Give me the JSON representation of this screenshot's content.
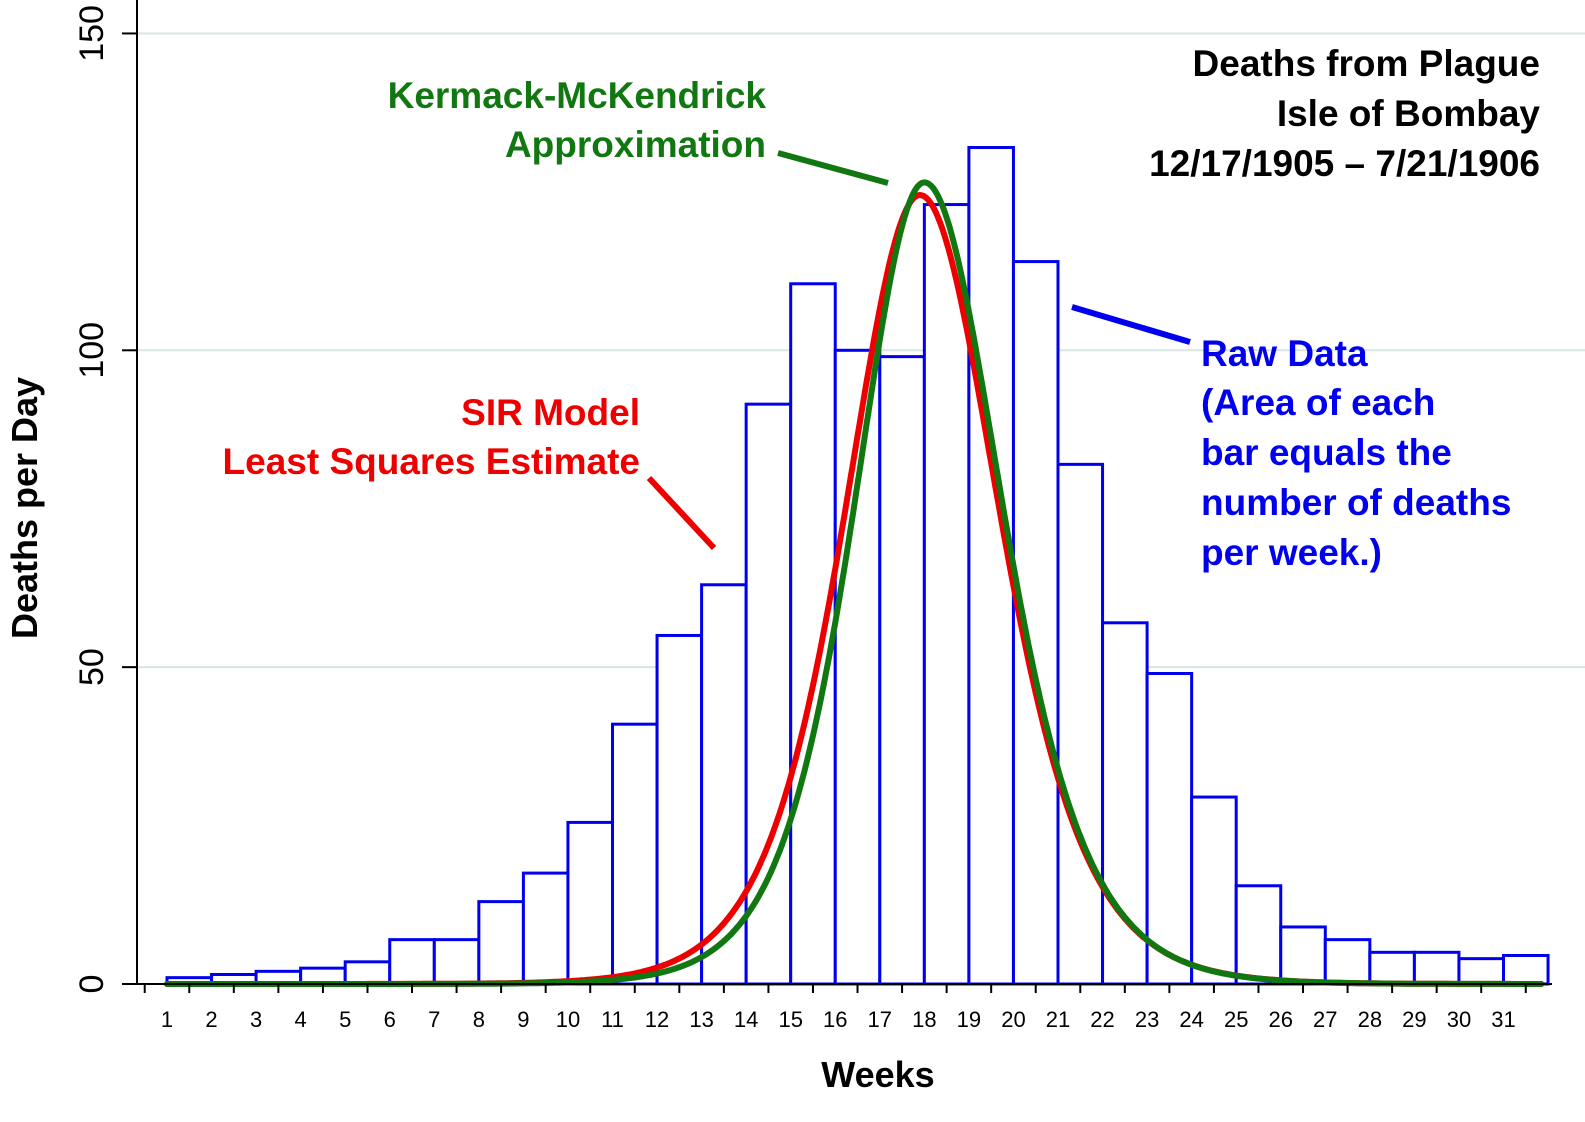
{
  "chart_data": {
    "type": "bar",
    "title": [
      "Deaths from Plague",
      "Isle of Bombay",
      "12/17/1905 – 7/21/1906"
    ],
    "xlabel": "Weeks",
    "ylabel": "Deaths per Day",
    "ylim": [
      0,
      150
    ],
    "yticks": [
      0,
      50,
      100,
      150
    ],
    "xticks": [
      "1",
      "2",
      "3",
      "4",
      "5",
      "6",
      "7",
      "8",
      "9",
      "10",
      "11",
      "12",
      "13",
      "14",
      "15",
      "16",
      "17",
      "18",
      "19",
      "20",
      "21",
      "22",
      "23",
      "24",
      "25",
      "26",
      "27",
      "28",
      "29",
      "30",
      "31"
    ],
    "categories": [
      "1",
      "2",
      "3",
      "4",
      "5",
      "6",
      "7",
      "8",
      "9",
      "10",
      "11",
      "12",
      "13",
      "14",
      "15",
      "16",
      "17",
      "18",
      "19",
      "20",
      "21",
      "22",
      "23",
      "24",
      "25",
      "26",
      "27",
      "28",
      "29",
      "30",
      "31"
    ],
    "series": [
      {
        "name": "Raw Data",
        "color": "#0000ee",
        "values": [
          1,
          1.5,
          2,
          2.5,
          3.5,
          7,
          7,
          13,
          17.5,
          25.5,
          41,
          55,
          63,
          91.5,
          110.5,
          100,
          99,
          123,
          132,
          114,
          82,
          57,
          49,
          29.5,
          15.5,
          9,
          7,
          5,
          5,
          4,
          4.5
        ]
      },
      {
        "name": "SIR Model Least Squares Estimate",
        "color": "#ee0000",
        "curve": {
          "peak": 124.5,
          "peak_week": 17.9,
          "rise_scale": 2.25,
          "fall_scale": 2.4
        }
      },
      {
        "name": "Kermack-McKendrick Approximation",
        "color": "#117711",
        "curve": {
          "peak": 126.5,
          "peak_week": 18.0,
          "rise_scale": 2.1,
          "fall_scale": 2.35
        }
      }
    ],
    "annotations": {
      "km": [
        "Kermack-McKendrick",
        "Approximation"
      ],
      "sir": [
        "SIR Model",
        "Least Squares Estimate"
      ],
      "raw": [
        "Raw Data",
        "(Area of each",
        "bar equals the",
        "number of deaths",
        "per week.)"
      ]
    }
  }
}
